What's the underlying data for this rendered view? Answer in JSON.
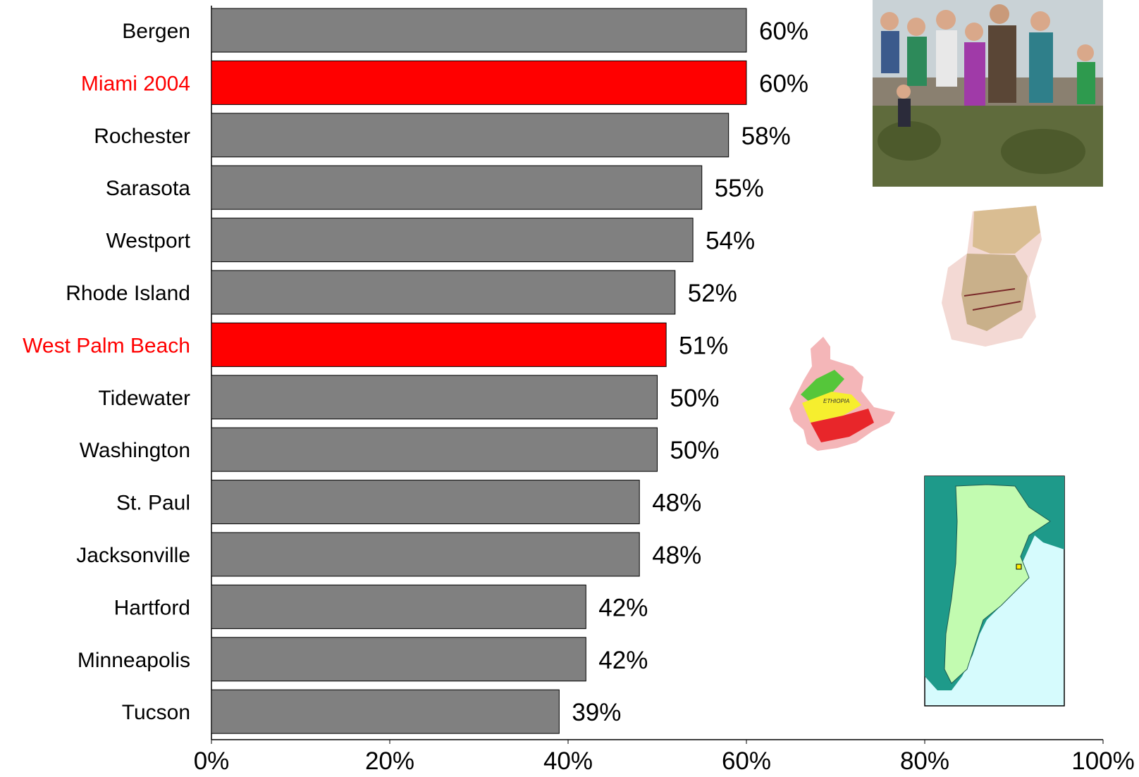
{
  "chart_data": {
    "type": "bar",
    "orientation": "horizontal",
    "categories": [
      "Bergen",
      "Miami 2004",
      "Rochester",
      "Sarasota",
      "Westport",
      "Rhode Island",
      "West Palm Beach",
      "Tidewater",
      "Washington",
      "St. Paul",
      "Jacksonville",
      "Hartford",
      "Minneapolis",
      "Tucson"
    ],
    "values": [
      60,
      60,
      58,
      55,
      54,
      52,
      51,
      50,
      50,
      48,
      48,
      42,
      42,
      39
    ],
    "value_labels": [
      "60%",
      "60%",
      "58%",
      "55%",
      "54%",
      "52%",
      "51%",
      "50%",
      "50%",
      "48%",
      "48%",
      "42%",
      "42%",
      "39%"
    ],
    "highlighted": [
      "Miami 2004",
      "West Palm Beach"
    ],
    "xlim": [
      0,
      100
    ],
    "xticks": [
      "0%",
      "20%",
      "40%",
      "60%",
      "80%",
      "100%"
    ],
    "grid": false,
    "colors": {
      "bar_default": "#808080",
      "bar_highlight": "#ff0000",
      "label_default": "#000000",
      "label_highlight": "#ff0000",
      "bar_stroke": "#000000"
    }
  },
  "illustrations": {
    "map_label": "ETHIOPIA"
  }
}
